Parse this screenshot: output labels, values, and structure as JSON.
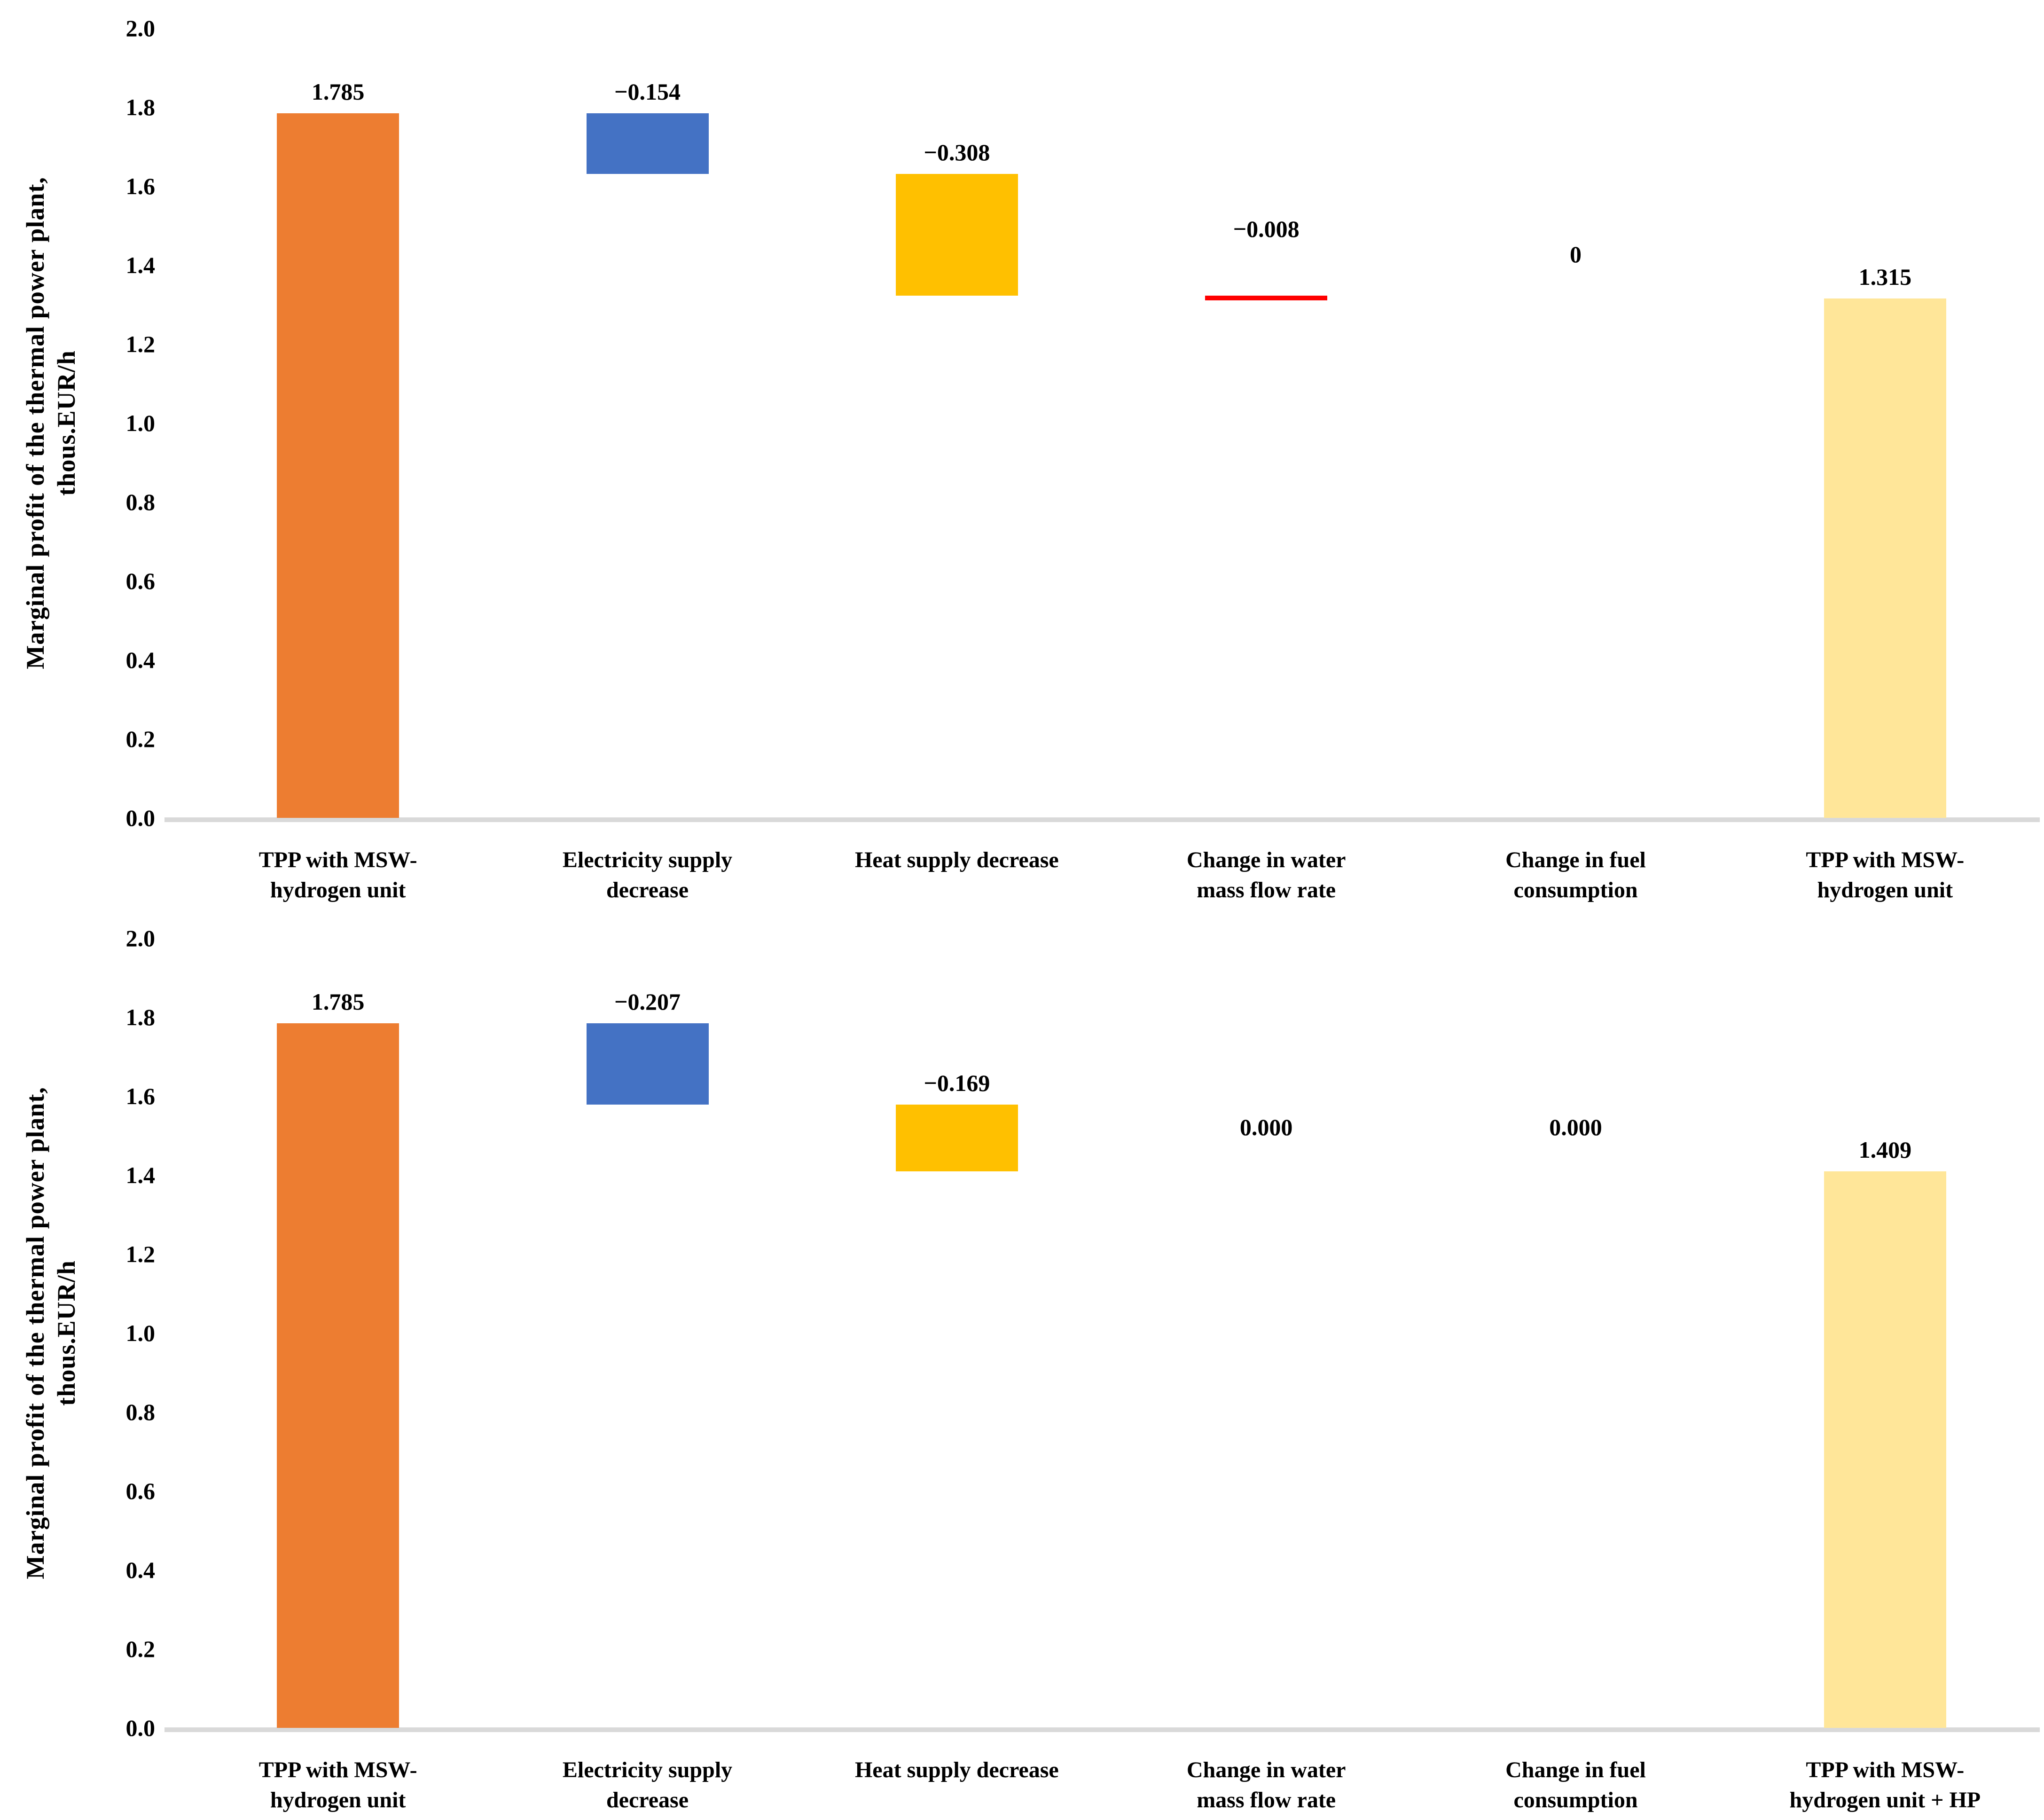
{
  "page": {
    "background": "#FFFFFF"
  },
  "chart_data": [
    {
      "type": "waterfall",
      "title": "",
      "ylabel_lines": [
        "Marginal profit of the thermal power plant,",
        "thous.EUR/h"
      ],
      "ylabel": "Marginal profit of the thermal power plant, thous.EUR/h",
      "xlabel": "",
      "ylim": [
        0.0,
        2.0
      ],
      "grid": false,
      "axis_line_color": "#D9D9D9",
      "yticks": [
        "2.0",
        "1.8",
        "1.6",
        "1.4",
        "1.2",
        "1.0",
        "0.8",
        "0.6",
        "0.4",
        "0.2",
        "0.0"
      ],
      "points": [
        {
          "category_lines": [
            "TPP with MSW-",
            "hydrogen unit"
          ],
          "label": "1.785",
          "value": 1.785,
          "from": 0.0,
          "to": 1.785,
          "color": "#ED7D31"
        },
        {
          "category_lines": [
            "Electricity supply",
            "decrease"
          ],
          "label": "−0.154",
          "value": -0.154,
          "from": 1.631,
          "to": 1.785,
          "color": "#4472C4"
        },
        {
          "category_lines": [
            "Heat supply decrease"
          ],
          "label": "−0.308",
          "value": -0.308,
          "from": 1.323,
          "to": 1.631,
          "color": "#FFC000"
        },
        {
          "category_lines": [
            "Change in water",
            "mass flow rate"
          ],
          "label": "−0.008",
          "value": -0.008,
          "from": 1.315,
          "to": 1.323,
          "color": "#FF0000"
        },
        {
          "category_lines": [
            "Change in fuel",
            "consumption"
          ],
          "label": "0",
          "value": 0,
          "from": 1.315,
          "to": 1.315,
          "color": null
        },
        {
          "category_lines": [
            "TPP with MSW-",
            "hydrogen unit"
          ],
          "label": "1.315",
          "value": 1.315,
          "from": 0.0,
          "to": 1.315,
          "color": "#FFE699"
        }
      ]
    },
    {
      "type": "waterfall",
      "title": "",
      "ylabel_lines": [
        "Marginal profit of the thermal power plant,",
        "thous.EUR/h"
      ],
      "ylabel": "Marginal profit of the thermal power plant, thous.EUR/h",
      "xlabel": "",
      "ylim": [
        0.0,
        2.0
      ],
      "grid": false,
      "axis_line_color": "#D9D9D9",
      "yticks": [
        "2.0",
        "1.8",
        "1.6",
        "1.4",
        "1.2",
        "1.0",
        "0.8",
        "0.6",
        "0.4",
        "0.2",
        "0.0"
      ],
      "points": [
        {
          "category_lines": [
            "TPP with MSW-",
            "hydrogen unit"
          ],
          "label": "1.785",
          "value": 1.785,
          "from": 0.0,
          "to": 1.785,
          "color": "#ED7D31"
        },
        {
          "category_lines": [
            "Electricity supply",
            "decrease"
          ],
          "label": "−0.207",
          "value": -0.207,
          "from": 1.578,
          "to": 1.785,
          "color": "#4472C4"
        },
        {
          "category_lines": [
            "Heat supply decrease"
          ],
          "label": "−0.169",
          "value": -0.169,
          "from": 1.409,
          "to": 1.578,
          "color": "#FFC000"
        },
        {
          "category_lines": [
            "Change in water",
            "mass flow rate"
          ],
          "label": "0.000",
          "value": 0,
          "from": 1.409,
          "to": 1.409,
          "color": null
        },
        {
          "category_lines": [
            "Change in fuel",
            "consumption"
          ],
          "label": "0.000",
          "value": 0,
          "from": 1.409,
          "to": 1.409,
          "color": null
        },
        {
          "category_lines": [
            "TPP with MSW-",
            "hydrogen unit + HP"
          ],
          "label": "1.409",
          "value": 1.409,
          "from": 0.0,
          "to": 1.409,
          "color": "#FFE699"
        }
      ]
    }
  ]
}
